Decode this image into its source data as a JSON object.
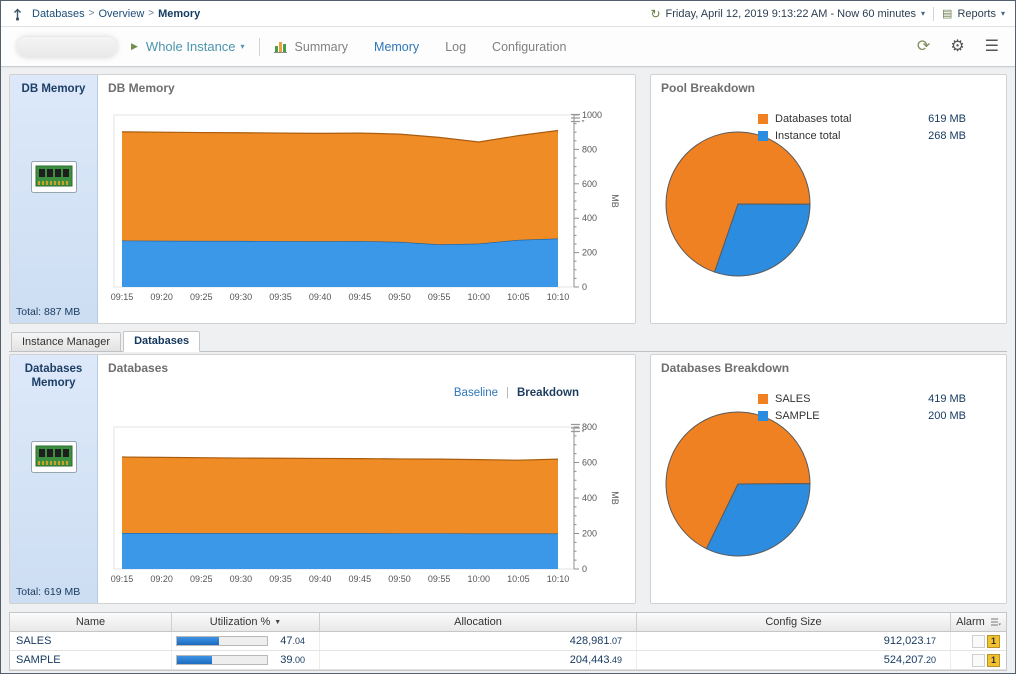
{
  "icons": {
    "breadcrumb_separator": ">",
    "chevron_down": "▾",
    "sort_desc": "▼",
    "play": "▶",
    "refresh": "⟳",
    "gear": "⚙",
    "menu": "☰",
    "clock": "↻",
    "report": "▤",
    "pipe": "|"
  },
  "breadcrumb": {
    "items": [
      "Databases",
      "Overview",
      "Memory"
    ]
  },
  "timebar": {
    "range": "Friday, April 12, 2019 9:13:22 AM - Now 60 minutes",
    "reports_label": "Reports"
  },
  "toolbar": {
    "instance_label": "Whole Instance",
    "nav": [
      "Summary",
      "Memory",
      "Log",
      "Configuration"
    ],
    "active": "Memory"
  },
  "row1": {
    "side": {
      "title": "DB Memory",
      "total": "Total: 887 MB"
    }
  },
  "tabs": {
    "items": [
      "Instance Manager",
      "Databases"
    ],
    "active": "Databases"
  },
  "row2": {
    "side": {
      "title": "Databases Memory",
      "total": "Total: 619 MB"
    },
    "toggle": {
      "baseline": "Baseline",
      "breakdown": "Breakdown"
    }
  },
  "table": {
    "headers": [
      "Name",
      "Utilization %",
      "Allocation",
      "Config Size",
      "Alarm"
    ],
    "rows": [
      {
        "name": "SALES",
        "util_pct": 47.04,
        "util_int": "47",
        "util_frac": ".04",
        "alloc_int": "428,981",
        "alloc_frac": ".07",
        "config_int": "912,023",
        "config_frac": ".17",
        "alarm_warning": "1"
      },
      {
        "name": "SAMPLE",
        "util_pct": 39.0,
        "util_int": "39",
        "util_frac": ".00",
        "alloc_int": "204,443",
        "alloc_frac": ".49",
        "config_int": "524,207",
        "config_frac": ".20",
        "alarm_warning": "1"
      }
    ]
  },
  "colors": {
    "accent_orange": "#ef8122",
    "accent_blue": "#2b8ce0",
    "link_blue": "#2e77b8",
    "navy": "#16395f"
  },
  "chart_data": [
    {
      "id": "db-memory-area",
      "type": "area",
      "title": "DB Memory",
      "stacked": true,
      "x": [
        "09:15",
        "09:20",
        "09:25",
        "09:30",
        "09:35",
        "09:40",
        "09:45",
        "09:50",
        "09:55",
        "10:00",
        "10:05",
        "10:10"
      ],
      "ylim": [
        0,
        1000
      ],
      "ytick_major": 200,
      "ytick_minor": 50,
      "ylabel": "MB",
      "legend_position": "none",
      "grid": false,
      "series": [
        {
          "name": "Instance total",
          "color": "#3b97e8",
          "edge": "#1a5f9e",
          "values": [
            270,
            269,
            268,
            268,
            267,
            266,
            267,
            262,
            248,
            252,
            274,
            282
          ]
        },
        {
          "name": "Databases total",
          "color": "#ef8c25",
          "edge": "#a95c0f",
          "values": [
            632,
            631,
            630,
            629,
            628,
            627,
            628,
            627,
            622,
            591,
            606,
            628
          ]
        }
      ]
    },
    {
      "id": "databases-area",
      "type": "area",
      "title": "Databases",
      "stacked": true,
      "x": [
        "09:15",
        "09:20",
        "09:25",
        "09:30",
        "09:35",
        "09:40",
        "09:45",
        "09:50",
        "09:55",
        "10:00",
        "10:05",
        "10:10"
      ],
      "ylim": [
        0,
        800
      ],
      "ytick_major": 200,
      "ytick_minor": 50,
      "ylabel": "MB",
      "legend_position": "none",
      "grid": false,
      "series": [
        {
          "name": "SAMPLE",
          "color": "#3b97e8",
          "edge": "#1a5f9e",
          "values": [
            203,
            203,
            202,
            202,
            202,
            202,
            202,
            201,
            201,
            200,
            200,
            200
          ]
        },
        {
          "name": "SALES",
          "color": "#ef8c25",
          "edge": "#a95c0f",
          "values": [
            428,
            426,
            425,
            423,
            422,
            421,
            420,
            419,
            418,
            416,
            413,
            419
          ]
        }
      ]
    },
    {
      "id": "pool-pie",
      "type": "pie",
      "title": "Pool Breakdown",
      "start_deg": 199,
      "slices": [
        {
          "label": "Databases total",
          "value": 619,
          "display": "619 MB",
          "color": "#ef8122"
        },
        {
          "label": "Instance total",
          "value": 268,
          "display": "268 MB",
          "color": "#2b8ce0"
        }
      ]
    },
    {
      "id": "databases-pie",
      "type": "pie",
      "title": "Databases Breakdown",
      "start_deg": 206,
      "slices": [
        {
          "label": "SALES",
          "value": 419,
          "display": "419 MB",
          "color": "#ef8122"
        },
        {
          "label": "SAMPLE",
          "value": 200,
          "display": "200 MB",
          "color": "#2b8ce0"
        }
      ]
    }
  ]
}
